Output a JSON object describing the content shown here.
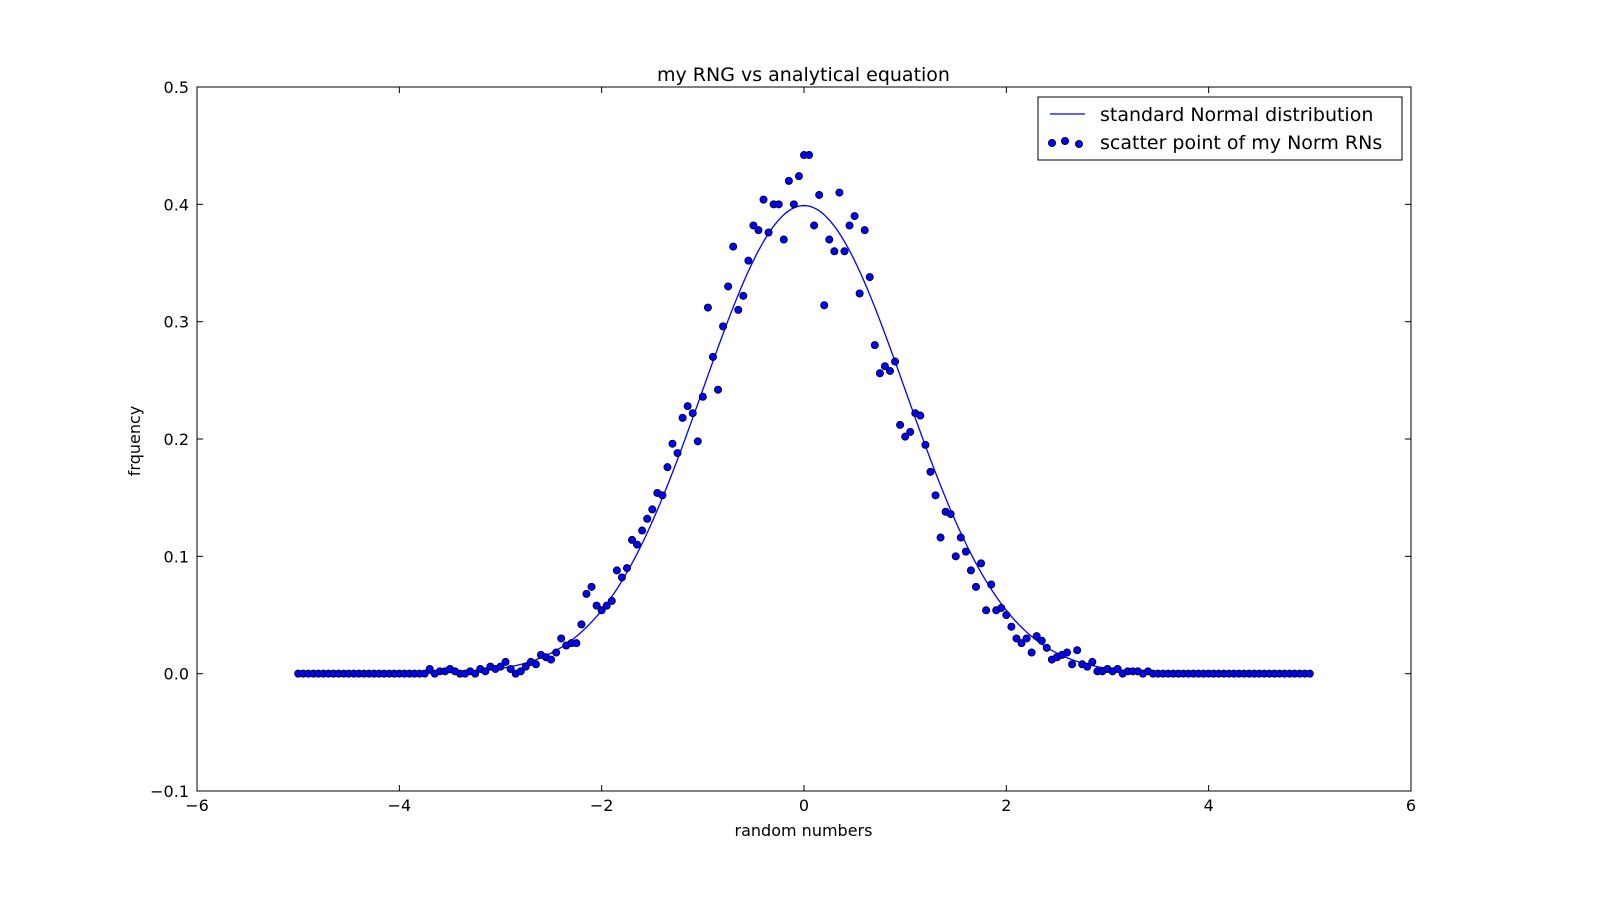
{
  "chart_data": {
    "type": "scatter",
    "title": "my RNG vs analytical equation",
    "xlabel": "random numbers",
    "ylabel": "frquency",
    "xlim": [
      -6,
      6
    ],
    "ylim": [
      -0.1,
      0.5
    ],
    "xticks": [
      -6,
      -4,
      -2,
      0,
      2,
      4,
      6
    ],
    "xtick_labels": [
      "−6",
      "−4",
      "−2",
      "0",
      "2",
      "4",
      "6"
    ],
    "yticks": [
      -0.1,
      0.0,
      0.1,
      0.2,
      0.3,
      0.4,
      0.5
    ],
    "ytick_labels": [
      "−0.1",
      "0.0",
      "0.1",
      "0.2",
      "0.3",
      "0.4",
      "0.5"
    ],
    "grid": false,
    "legend_position": "top-right",
    "line_series": {
      "name": "standard Normal distribution",
      "color": "#0000ff",
      "function": "standard normal pdf",
      "x_range": [
        -5,
        5
      ]
    },
    "scatter_series": {
      "name": "scatter point of my Norm RNs",
      "color": "#0000ff",
      "edge_color": "#000000",
      "x_range": [
        -5,
        5
      ],
      "point_count": 201,
      "y": [
        0,
        0,
        0,
        0,
        0,
        0,
        0,
        0,
        0,
        0,
        0,
        0,
        0,
        0,
        0,
        0,
        0,
        0,
        0,
        0,
        0,
        0,
        0,
        0,
        0,
        0,
        0.004,
        0,
        0.002,
        0.002,
        0.004,
        0.002,
        0,
        0,
        0.002,
        0,
        0.004,
        0.002,
        0.006,
        0.004,
        0.006,
        0.01,
        0.004,
        0,
        0.002,
        0.006,
        0.01,
        0.008,
        0.016,
        0.014,
        0.012,
        0.018,
        0.03,
        0.024,
        0.026,
        0.026,
        0.042,
        0.068,
        0.074,
        0.058,
        0.054,
        0.058,
        0.062,
        0.088,
        0.082,
        0.09,
        0.114,
        0.11,
        0.122,
        0.132,
        0.14,
        0.154,
        0.152,
        0.176,
        0.196,
        0.188,
        0.218,
        0.228,
        0.222,
        0.198,
        0.236,
        0.312,
        0.27,
        0.242,
        0.296,
        0.33,
        0.364,
        0.31,
        0.322,
        0.352,
        0.382,
        0.378,
        0.404,
        0.376,
        0.4,
        0.4,
        0.37,
        0.42,
        0.4,
        0.424,
        0.442,
        0.442,
        0.382,
        0.408,
        0.314,
        0.37,
        0.36,
        0.41,
        0.36,
        0.382,
        0.39,
        0.324,
        0.378,
        0.338,
        0.28,
        0.256,
        0.262,
        0.258,
        0.266,
        0.212,
        0.202,
        0.206,
        0.222,
        0.22,
        0.195,
        0.172,
        0.152,
        0.116,
        0.138,
        0.136,
        0.1,
        0.116,
        0.104,
        0.088,
        0.074,
        0.094,
        0.054,
        0.076,
        0.054,
        0.056,
        0.05,
        0.04,
        0.03,
        0.026,
        0.03,
        0.018,
        0.032,
        0.028,
        0.022,
        0.012,
        0.014,
        0.016,
        0.018,
        0.008,
        0.02,
        0.008,
        0.006,
        0.01,
        0.002,
        0.002,
        0.004,
        0.002,
        0.004,
        0,
        0.002,
        0.002,
        0.002,
        0,
        0.002,
        0,
        0,
        0,
        0,
        0,
        0,
        0,
        0,
        0,
        0,
        0,
        0,
        0,
        0,
        0,
        0,
        0,
        0,
        0,
        0,
        0,
        0,
        0,
        0,
        0,
        0,
        0,
        0,
        0,
        0,
        0,
        0
      ]
    }
  }
}
